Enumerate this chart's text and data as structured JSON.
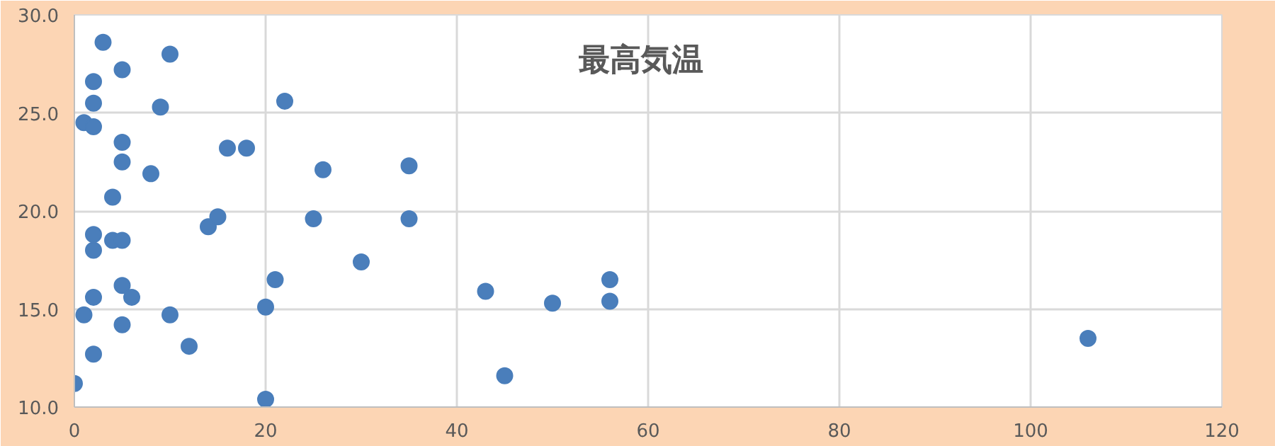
{
  "chart_data": {
    "type": "scatter",
    "title": "最高気温",
    "x": [
      0,
      1,
      1,
      2,
      2,
      2,
      2,
      2,
      2,
      2,
      3,
      4,
      4,
      5,
      5,
      5,
      5,
      5,
      5,
      6,
      8,
      9,
      10,
      10,
      12,
      14,
      15,
      16,
      18,
      20,
      20,
      21,
      22,
      25,
      26,
      30,
      35,
      35,
      43,
      45,
      50,
      56,
      56,
      106
    ],
    "series": [
      {
        "color": "#4a7ebb",
        "values": [
          11.2,
          14.7,
          24.5,
          12.7,
          15.6,
          18.0,
          18.8,
          24.3,
          25.5,
          26.6,
          28.6,
          20.7,
          18.5,
          18.5,
          16.2,
          14.2,
          27.2,
          23.5,
          22.5,
          15.6,
          21.9,
          25.3,
          28.0,
          14.7,
          13.1,
          19.2,
          19.7,
          23.2,
          23.2,
          15.1,
          10.4,
          16.5,
          25.6,
          19.6,
          22.1,
          17.4,
          22.3,
          19.6,
          15.9,
          11.6,
          15.3,
          16.5,
          15.4,
          13.5
        ]
      }
    ],
    "xlim": [
      0,
      120
    ],
    "xticks": [
      0,
      20,
      40,
      60,
      80,
      100,
      120
    ],
    "ylim": [
      10,
      30
    ],
    "yticks": [
      {
        "value": 10,
        "label": "10.0"
      },
      {
        "value": 15,
        "label": "15.0"
      },
      {
        "value": 20,
        "label": "20.0"
      },
      {
        "value": 25,
        "label": "25.0"
      },
      {
        "value": 30,
        "label": "30.0"
      }
    ],
    "grid": true,
    "marker": "circle"
  }
}
